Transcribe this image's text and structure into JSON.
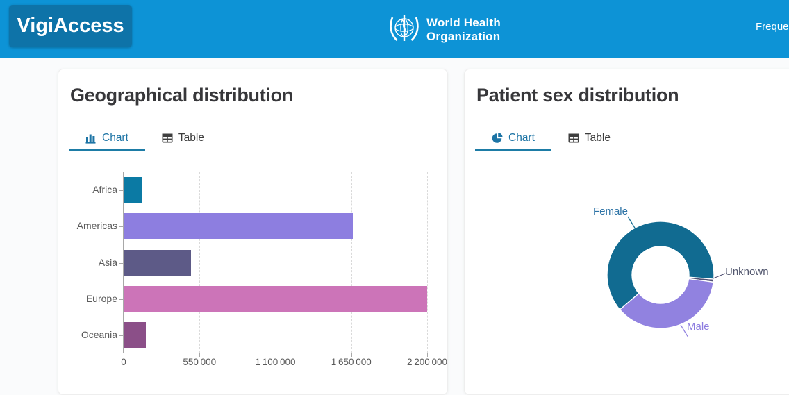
{
  "header": {
    "brand": "VigiAccess",
    "who_line1": "World Health",
    "who_line2": "Organization",
    "nav_right": "Freque",
    "colors": {
      "bar_bg": "#0d93d6",
      "brand_bg": "#0e73a8"
    }
  },
  "geo_card": {
    "title": "Geographical distribution",
    "tabs": [
      {
        "label": "Chart",
        "icon": "bar-chart-icon",
        "active": true
      },
      {
        "label": "Table",
        "icon": "table-icon",
        "active": false
      }
    ]
  },
  "sex_card": {
    "title": "Patient sex distribution",
    "tabs": [
      {
        "label": "Chart",
        "icon": "pie-chart-icon",
        "active": true
      },
      {
        "label": "Table",
        "icon": "table-icon",
        "active": false
      }
    ]
  },
  "theme": {
    "active_tab_color": "#1d74a5",
    "underline_color": "#1d7ca6",
    "axis_color": "#a8a8a8",
    "grid_color": "#d9d9d9",
    "text_muted": "#5a5a5a"
  },
  "chart_data": [
    {
      "type": "bar",
      "orientation": "horizontal",
      "title": "Geographical distribution",
      "categories": [
        "Africa",
        "Americas",
        "Asia",
        "Europe",
        "Oceania"
      ],
      "values": [
        135000,
        1660000,
        490000,
        2200000,
        160000
      ],
      "colors": [
        "#0b7aa4",
        "#8d7ee0",
        "#5d5a87",
        "#cc74b8",
        "#8b4f88"
      ],
      "xlim": [
        0,
        2200000
      ],
      "xticks": [
        0,
        550000,
        1100000,
        1650000,
        2200000
      ],
      "xtick_labels": [
        "0",
        "550 000",
        "1 100 000",
        "1 650 000",
        "2 200 000"
      ],
      "grid": "dashed-vertical",
      "legend": "none"
    },
    {
      "type": "pie",
      "subtype": "donut",
      "title": "Patient sex distribution",
      "slices": [
        {
          "label": "Female",
          "pct": 62.5,
          "color": "#116b91",
          "label_color": "#2d73a6"
        },
        {
          "label": "Male",
          "pct": 36.6,
          "color": "#9182e0",
          "label_color": "#8d7ce0"
        },
        {
          "label": "Unknown",
          "pct": 0.9,
          "color": "#515174",
          "label_color": "#53586f"
        }
      ],
      "legend": "outside-labels"
    }
  ]
}
